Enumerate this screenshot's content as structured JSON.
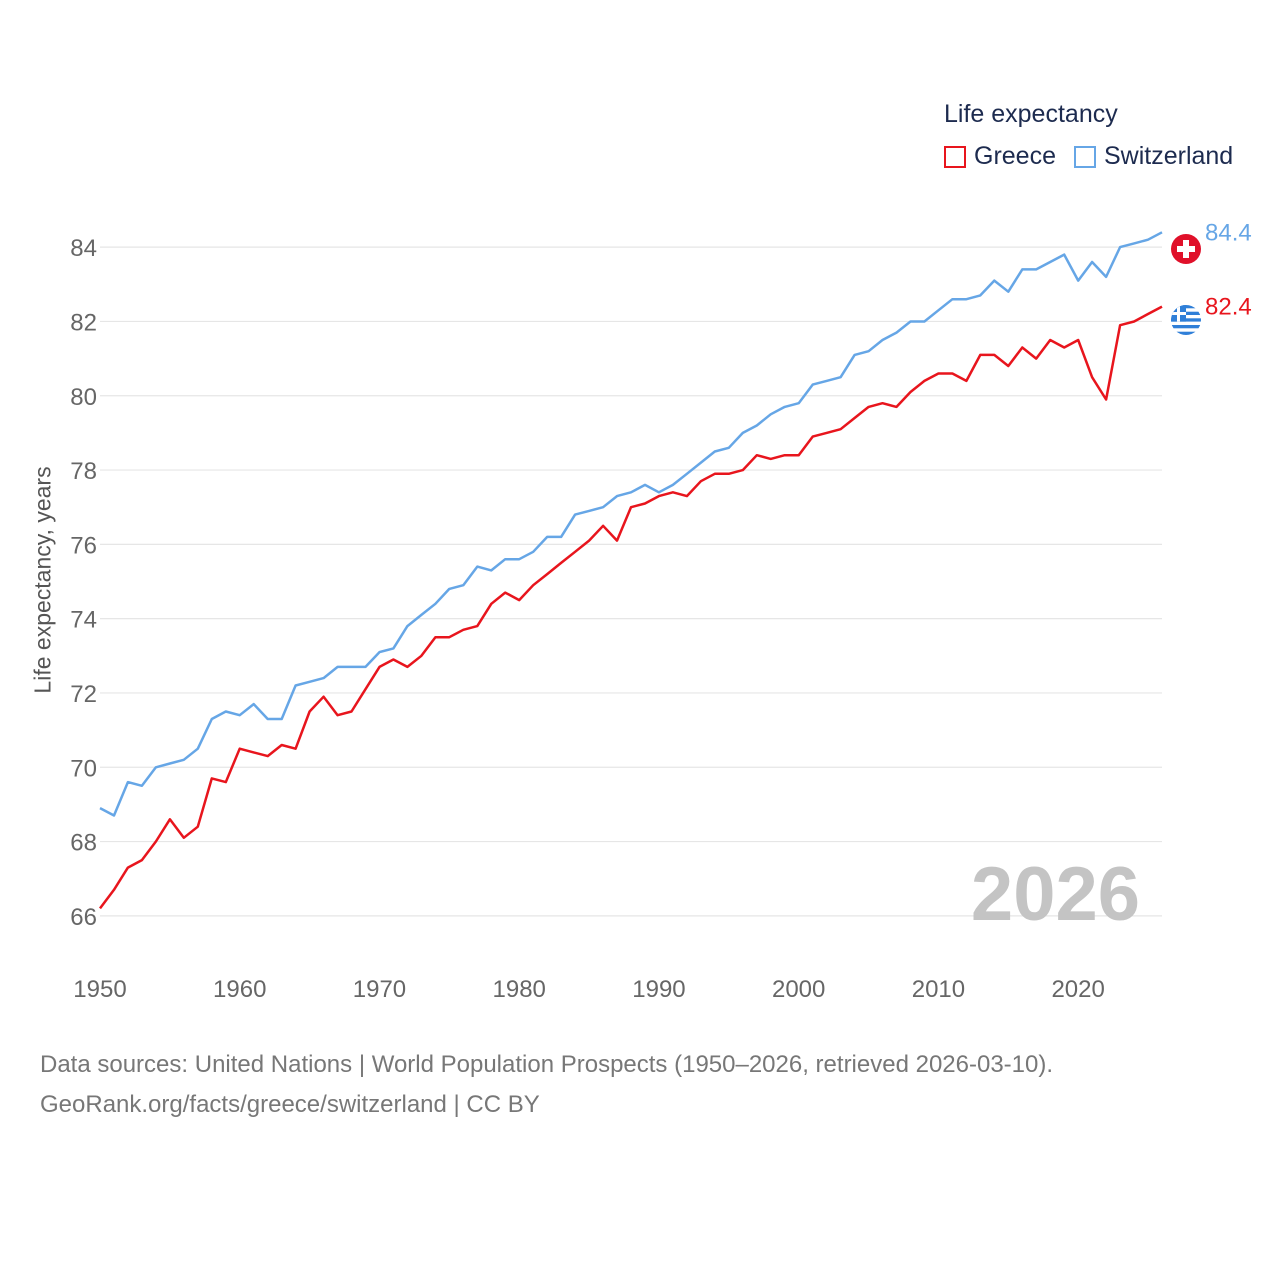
{
  "legend": {
    "title": "Life expectancy",
    "items": [
      {
        "label": "Greece",
        "color": "#e8151d"
      },
      {
        "label": "Switzerland",
        "color": "#66a6e6"
      }
    ]
  },
  "current_year": "2026",
  "source": {
    "line1": "Data sources: United Nations | World Population Prospects (1950–2026, retrieved 2026-03-10).",
    "line2": "GeoRank.org/facts/greece/switzerland | CC BY"
  },
  "chart_data": {
    "type": "line",
    "title": "Life expectancy",
    "xlabel": "",
    "ylabel": "Life expectancy, years",
    "xlim": [
      1950,
      2026
    ],
    "ylim": [
      65,
      85
    ],
    "grid": true,
    "x_ticks": [
      1950,
      1960,
      1970,
      1980,
      1990,
      2000,
      2010,
      2020
    ],
    "y_ticks": [
      66,
      68,
      70,
      72,
      74,
      76,
      78,
      80,
      82,
      84
    ],
    "x": [
      1950,
      1951,
      1952,
      1953,
      1954,
      1955,
      1956,
      1957,
      1958,
      1959,
      1960,
      1961,
      1962,
      1963,
      1964,
      1965,
      1966,
      1967,
      1968,
      1969,
      1970,
      1971,
      1972,
      1973,
      1974,
      1975,
      1976,
      1977,
      1978,
      1979,
      1980,
      1981,
      1982,
      1983,
      1984,
      1985,
      1986,
      1987,
      1988,
      1989,
      1990,
      1991,
      1992,
      1993,
      1994,
      1995,
      1996,
      1997,
      1998,
      1999,
      2000,
      2001,
      2002,
      2003,
      2004,
      2005,
      2006,
      2007,
      2008,
      2009,
      2010,
      2011,
      2012,
      2013,
      2014,
      2015,
      2016,
      2017,
      2018,
      2019,
      2020,
      2021,
      2022,
      2023,
      2024,
      2025,
      2026
    ],
    "series": [
      {
        "name": "Greece",
        "color": "#e8151d",
        "end_label": "82.4",
        "values": [
          66.2,
          66.7,
          67.3,
          67.5,
          68.0,
          68.6,
          68.1,
          68.4,
          69.7,
          69.6,
          70.5,
          70.4,
          70.3,
          70.6,
          70.5,
          71.5,
          71.9,
          71.4,
          71.5,
          72.1,
          72.7,
          72.9,
          72.7,
          73.0,
          73.5,
          73.5,
          73.7,
          73.8,
          74.4,
          74.7,
          74.5,
          74.9,
          75.2,
          75.5,
          75.8,
          76.1,
          76.5,
          76.1,
          77.0,
          77.1,
          77.3,
          77.4,
          77.3,
          77.7,
          77.9,
          77.9,
          78.0,
          78.4,
          78.3,
          78.4,
          78.4,
          78.9,
          79.0,
          79.1,
          79.4,
          79.7,
          79.8,
          79.7,
          80.1,
          80.4,
          80.6,
          80.6,
          80.4,
          81.1,
          81.1,
          80.8,
          81.3,
          81.0,
          81.5,
          81.3,
          81.5,
          80.5,
          79.9,
          81.9,
          82.0,
          82.2,
          82.4
        ]
      },
      {
        "name": "Switzerland",
        "color": "#66a6e6",
        "end_label": "84.4",
        "values": [
          68.9,
          68.7,
          69.6,
          69.5,
          70.0,
          70.1,
          70.2,
          70.5,
          71.3,
          71.5,
          71.4,
          71.7,
          71.3,
          71.3,
          72.2,
          72.3,
          72.4,
          72.7,
          72.7,
          72.7,
          73.1,
          73.2,
          73.8,
          74.1,
          74.4,
          74.8,
          74.9,
          75.4,
          75.3,
          75.6,
          75.6,
          75.8,
          76.2,
          76.2,
          76.8,
          76.9,
          77.0,
          77.3,
          77.4,
          77.6,
          77.4,
          77.6,
          77.9,
          78.2,
          78.5,
          78.6,
          79.0,
          79.2,
          79.5,
          79.7,
          79.8,
          80.3,
          80.4,
          80.5,
          81.1,
          81.2,
          81.5,
          81.7,
          82.0,
          82.0,
          82.3,
          82.6,
          82.6,
          82.7,
          83.1,
          82.8,
          83.4,
          83.4,
          83.6,
          83.8,
          83.1,
          83.6,
          83.2,
          84.0,
          84.1,
          84.2,
          84.4
        ]
      }
    ]
  }
}
